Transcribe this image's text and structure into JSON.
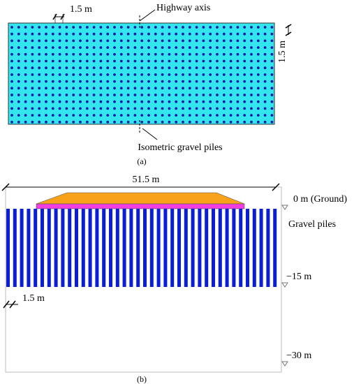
{
  "panel_a": {
    "spacing_top": "1.5 m",
    "axis_label": "Highway axis",
    "spacing_side": "1.5 m",
    "piles_label": "Isometric gravel piles",
    "caption": "(a)"
  },
  "panel_b": {
    "width_label": "51.5 m",
    "ground_label": "0 m (Ground)",
    "piles_label": "Gravel piles",
    "depth_mid": "−15 m",
    "spacing_label": "1.5 m",
    "depth_bottom": "−30 m",
    "caption": "(b)"
  }
}
